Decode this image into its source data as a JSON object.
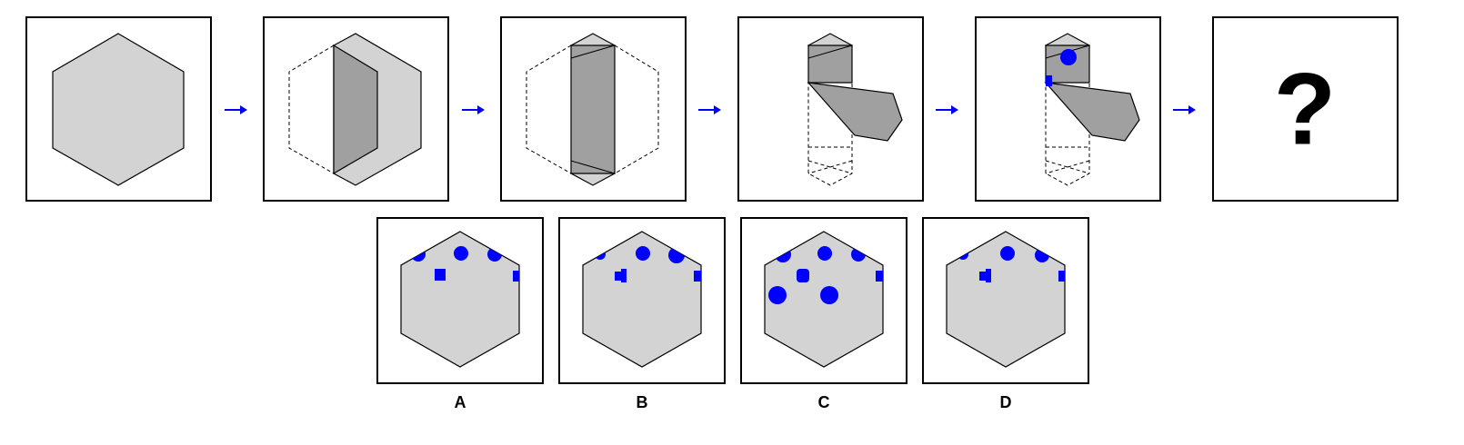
{
  "colors": {
    "face": "#d3d3d3",
    "fold": "#a0a0a0",
    "stroke": "#000000",
    "mark": "#0000ff",
    "arrow": "#0000ff"
  },
  "sequence": {
    "steps": [
      {
        "state": "flat-hexagon"
      },
      {
        "state": "left-side-folded-over"
      },
      {
        "state": "right-side-folded-over"
      },
      {
        "state": "bottom-folded-up-diagonally"
      },
      {
        "state": "punched-circle-and-square"
      }
    ],
    "question_mark": "?"
  },
  "options": [
    {
      "label": "A"
    },
    {
      "label": "B"
    },
    {
      "label": "C"
    },
    {
      "label": "D"
    }
  ]
}
